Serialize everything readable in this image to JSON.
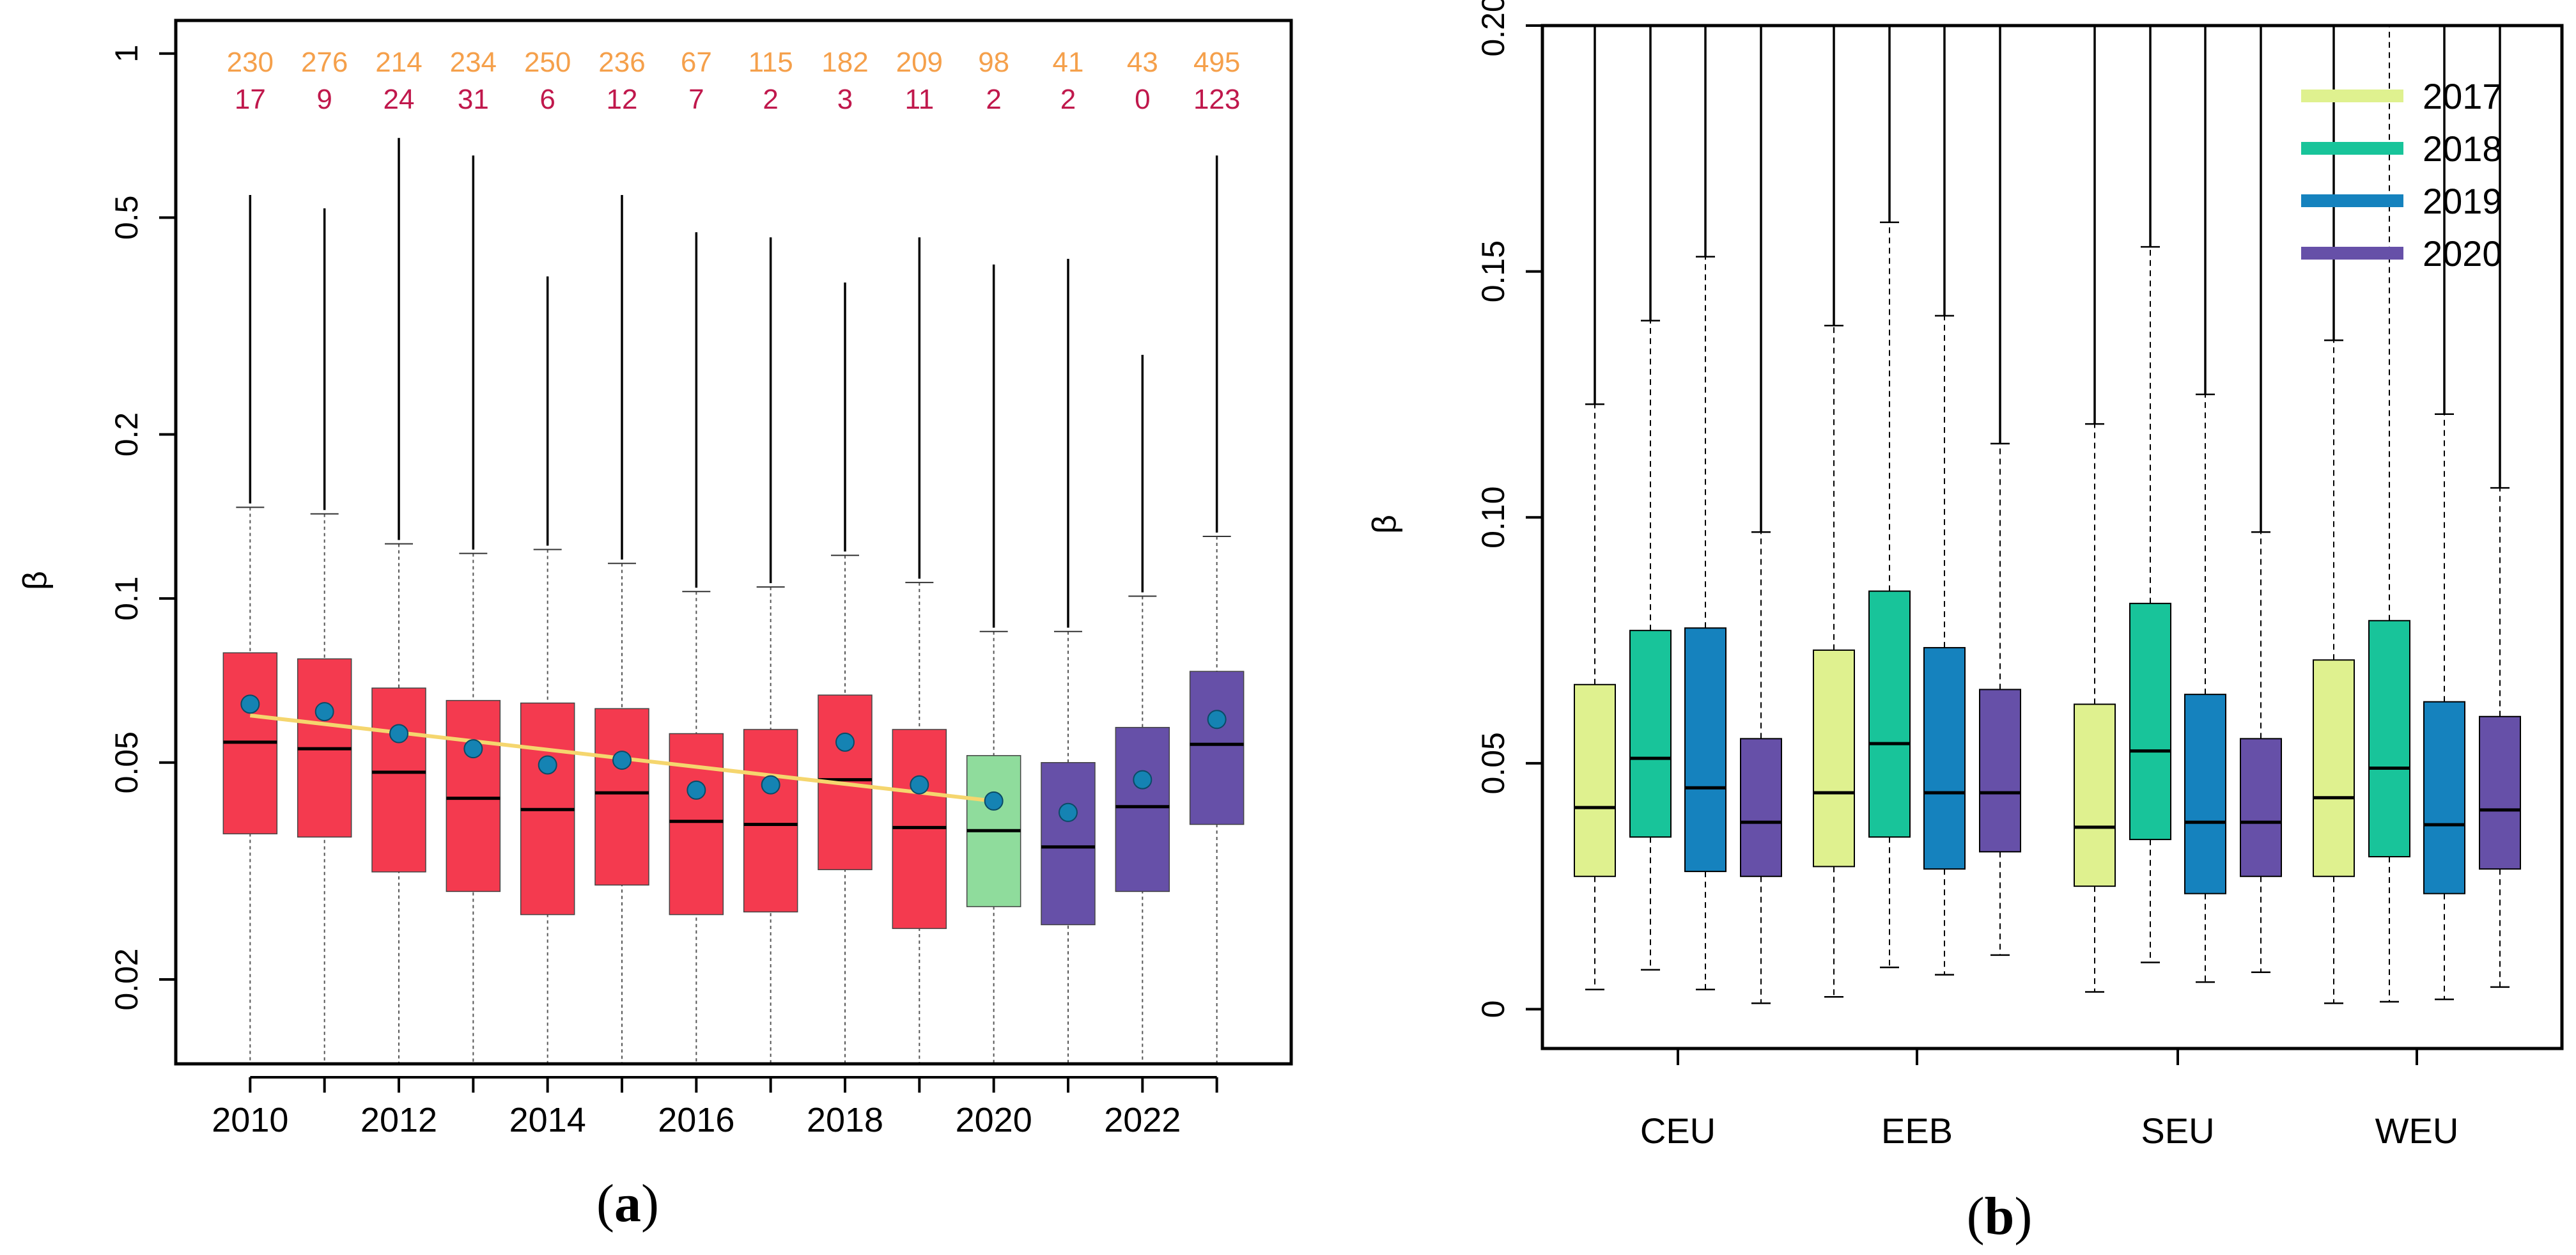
{
  "panels": [
    {
      "label_open": "(",
      "label_letter": "a",
      "label_close": ")"
    },
    {
      "label_open": "(",
      "label_letter": "b",
      "label_close": ")"
    }
  ],
  "chart_data": [
    {
      "type": "box",
      "panel": "a",
      "ylabel": "β",
      "yscale": "log",
      "ylim": [
        0.014,
        1.15
      ],
      "yticks": [
        0.02,
        0.05,
        0.1,
        0.2,
        0.5,
        1
      ],
      "ytick_labels": [
        "0.02",
        "0.05",
        "0.1",
        "0.2",
        "0.5",
        "1"
      ],
      "x": [
        2010,
        2011,
        2012,
        2013,
        2014,
        2015,
        2016,
        2017,
        2018,
        2019,
        2020,
        2021,
        2022,
        2023
      ],
      "xlim": [
        2009.0,
        2024.0
      ],
      "xticks": [
        2010,
        2012,
        2014,
        2016,
        2018,
        2020,
        2022
      ],
      "xtick_labels": [
        "2010",
        "2012",
        "2014",
        "2016",
        "2018",
        "2020",
        "2022"
      ],
      "colors": {
        "red_boxes": "#f43a4f",
        "green_box": "#8fdc9c",
        "purple_boxes": "#6650a8",
        "mean_dot": "#1583b3",
        "trend": "#f5d66e",
        "count_top": "#f5a04b",
        "count_bottom": "#c0184c"
      },
      "box_colors": [
        "red",
        "red",
        "red",
        "red",
        "red",
        "red",
        "red",
        "red",
        "red",
        "red",
        "green",
        "purple",
        "purple",
        "purple"
      ],
      "q1": [
        0.037,
        0.0365,
        0.0315,
        0.029,
        0.0263,
        0.0298,
        0.0263,
        0.0266,
        0.0318,
        0.0248,
        0.0272,
        0.0252,
        0.029,
        0.0385
      ],
      "median": [
        0.0545,
        0.053,
        0.048,
        0.043,
        0.041,
        0.044,
        0.039,
        0.0385,
        0.0465,
        0.038,
        0.0375,
        0.035,
        0.0415,
        0.054
      ],
      "q3": [
        0.0795,
        0.0775,
        0.0685,
        0.065,
        0.0643,
        0.0628,
        0.0565,
        0.0575,
        0.0665,
        0.0575,
        0.0515,
        0.05,
        0.058,
        0.0735
      ],
      "whisker_high": [
        0.147,
        0.143,
        0.126,
        0.121,
        0.123,
        0.116,
        0.103,
        0.105,
        0.12,
        0.107,
        0.087,
        0.087,
        0.101,
        0.13
      ],
      "whisker_low": [
        0.014,
        0.014,
        0.014,
        0.014,
        0.014,
        0.014,
        0.014,
        0.014,
        0.014,
        0.014,
        0.014,
        0.014,
        0.014,
        0.014
      ],
      "outlier_max": [
        0.55,
        0.52,
        0.7,
        0.65,
        0.39,
        0.55,
        0.47,
        0.46,
        0.38,
        0.46,
        0.41,
        0.42,
        0.28,
        0.65
      ],
      "means": [
        0.064,
        0.062,
        0.0565,
        0.053,
        0.0495,
        0.0505,
        0.0445,
        0.0455,
        0.0545,
        0.0455,
        0.0425,
        0.0405,
        0.0465,
        0.06
      ],
      "trend_line": {
        "x_start": 2010,
        "x_end": 2020,
        "y_start": 0.061,
        "y_end": 0.0425
      },
      "counts_top": [
        "230",
        "276",
        "214",
        "234",
        "250",
        "236",
        "67",
        "115",
        "182",
        "209",
        "98",
        "41",
        "43",
        "495"
      ],
      "counts_bottom": [
        "17",
        "9",
        "24",
        "31",
        "6",
        "12",
        "7",
        "2",
        "3",
        "11",
        "2",
        "2",
        "0",
        "123"
      ]
    },
    {
      "type": "box",
      "panel": "b",
      "ylabel": "β",
      "ylim": [
        -0.008,
        0.2
      ],
      "yticks": [
        0,
        0.05,
        0.1,
        0.15,
        0.2
      ],
      "ytick_labels": [
        "0",
        "0.05",
        "0.10",
        "0.15",
        "0.20"
      ],
      "categories": [
        "CEU",
        "EEB",
        "SEU",
        "WEU"
      ],
      "legend_position": "top-right",
      "series": [
        {
          "name": "2017",
          "color": "#dff18f",
          "q1": [
            0.027,
            0.029,
            0.025,
            0.027
          ],
          "median": [
            0.041,
            0.044,
            0.037,
            0.043
          ],
          "q3": [
            0.066,
            0.073,
            0.062,
            0.071
          ],
          "whisker_low": [
            0.004,
            0.0025,
            0.0035,
            0.0012
          ],
          "whisker_high": [
            0.123,
            0.139,
            0.119,
            0.136
          ],
          "outlier_max": [
            0.2,
            0.2,
            0.2,
            0.2
          ]
        },
        {
          "name": "2018",
          "color": "#18c49a",
          "q1": [
            0.035,
            0.035,
            0.0345,
            0.031
          ],
          "median": [
            0.051,
            0.054,
            0.0525,
            0.049
          ],
          "q3": [
            0.077,
            0.085,
            0.0825,
            0.079
          ],
          "whisker_low": [
            0.008,
            0.0085,
            0.0095,
            0.0015
          ],
          "whisker_high": [
            0.14,
            0.16,
            0.155,
            0.2
          ],
          "outlier_max": [
            0.2,
            0.2,
            0.2,
            0.2
          ]
        },
        {
          "name": "2019",
          "color": "#1582be",
          "q1": [
            0.028,
            0.0285,
            0.0235,
            0.0235
          ],
          "median": [
            0.045,
            0.044,
            0.038,
            0.0375
          ],
          "q3": [
            0.0775,
            0.0735,
            0.064,
            0.0625
          ],
          "whisker_low": [
            0.004,
            0.007,
            0.0055,
            0.002
          ],
          "whisker_high": [
            0.153,
            0.141,
            0.125,
            0.121
          ],
          "outlier_max": [
            0.2,
            0.2,
            0.2,
            0.2
          ]
        },
        {
          "name": "2020",
          "color": "#6650a8",
          "q1": [
            0.027,
            0.032,
            0.027,
            0.0285
          ],
          "median": [
            0.038,
            0.044,
            0.038,
            0.0405
          ],
          "q3": [
            0.055,
            0.065,
            0.055,
            0.0595
          ],
          "whisker_low": [
            0.0012,
            0.011,
            0.0075,
            0.0045
          ],
          "whisker_high": [
            0.097,
            0.115,
            0.097,
            0.106
          ],
          "outlier_max": [
            0.2,
            0.2,
            0.2,
            0.2
          ]
        }
      ]
    }
  ]
}
